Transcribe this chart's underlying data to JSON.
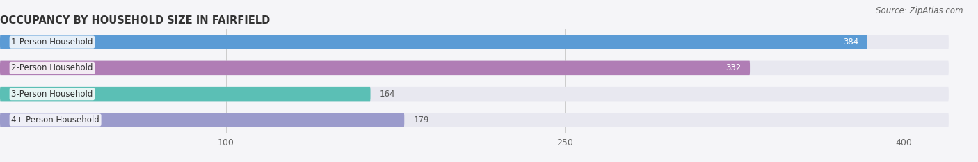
{
  "title": "OCCUPANCY BY HOUSEHOLD SIZE IN FAIRFIELD",
  "source": "Source: ZipAtlas.com",
  "categories": [
    "1-Person Household",
    "2-Person Household",
    "3-Person Household",
    "4+ Person Household"
  ],
  "values": [
    384,
    332,
    164,
    179
  ],
  "bar_colors": [
    "#5b9bd5",
    "#b07db5",
    "#5bbfb5",
    "#9b9bcc"
  ],
  "bar_bg_color": "#e8e8f0",
  "label_colors": [
    "#555555",
    "#555555",
    "#555555",
    "#555555"
  ],
  "value_colors": [
    "#ffffff",
    "#ffffff",
    "#666666",
    "#666666"
  ],
  "x_ticks": [
    100,
    250,
    400
  ],
  "xlim_max": 420,
  "background_color": "#f5f5f8",
  "title_fontsize": 10.5,
  "source_fontsize": 8.5,
  "tick_fontsize": 9,
  "cat_fontsize": 8.5,
  "val_fontsize": 8.5
}
